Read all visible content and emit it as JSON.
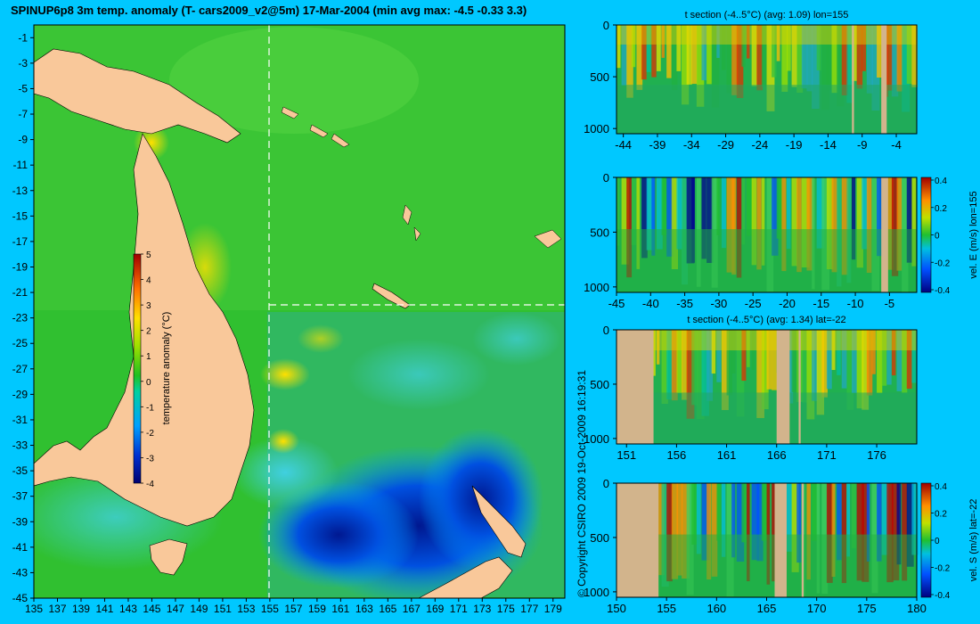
{
  "title": "SPINUP6p8 3m temp. anomaly (T- cars2009_v2@5m) 17-Mar-2004 (min avg max: -4.5 -0.33 3.3)",
  "copyright": "© Copyright CSIRO 2009  19-Oct-2009 16:19:31",
  "colors": {
    "background": "#00c8ff",
    "land": "#f9c89a",
    "section_land": "#d2b48c"
  },
  "map": {
    "x_ticks": [
      "135",
      "137",
      "139",
      "141",
      "143",
      "145",
      "147",
      "149",
      "151",
      "153",
      "155",
      "157",
      "159",
      "161",
      "163",
      "165",
      "167",
      "169",
      "171",
      "173",
      "175",
      "177",
      "179"
    ],
    "y_ticks": [
      "-1",
      "-3",
      "-5",
      "-7",
      "-9",
      "-11",
      "-13",
      "-15",
      "-17",
      "-19",
      "-21",
      "-23",
      "-25",
      "-27",
      "-29",
      "-31",
      "-33",
      "-35",
      "-37",
      "-39",
      "-41",
      "-43",
      "-45"
    ],
    "xlim": [
      135,
      180
    ],
    "ylim": [
      -45,
      0
    ],
    "section_lon": 155,
    "section_lat": -22,
    "colorbar": {
      "label": "temperature anomaly (°C)",
      "ticks": [
        "5",
        "4",
        "3",
        "2",
        "1",
        "0",
        "-1",
        "-2",
        "-3",
        "-4"
      ],
      "range": [
        -4,
        5
      ]
    }
  },
  "chart_data": [
    {
      "type": "heatmap",
      "title": "t section (-4..5°C) (avg: 1.09) lon=155",
      "x_ticks": [
        "-44",
        "-39",
        "-34",
        "-29",
        "-24",
        "-19",
        "-14",
        "-9",
        "-4"
      ],
      "y_ticks": [
        "0",
        "500",
        "1000"
      ],
      "xlim": [
        -45,
        -1
      ],
      "ylim": [
        1050,
        0
      ]
    },
    {
      "type": "heatmap",
      "title": "",
      "x_ticks": [
        "-45",
        "-40",
        "-35",
        "-30",
        "-25",
        "-20",
        "-15",
        "-10",
        "-5"
      ],
      "y_ticks": [
        "0",
        "500",
        "1000"
      ],
      "xlim": [
        -45,
        -1
      ],
      "ylim": [
        1050,
        0
      ],
      "colorbar": {
        "label": "vel. E (m/s) lon=155",
        "ticks": [
          "0.4",
          "0.2",
          "0",
          "-0.2",
          "-0.4"
        ],
        "range": [
          -0.4,
          0.4
        ]
      }
    },
    {
      "type": "heatmap",
      "title": "t section (-4..5°C) (avg: 1.34) lat=-22",
      "x_ticks": [
        "151",
        "156",
        "161",
        "166",
        "171",
        "176"
      ],
      "y_ticks": [
        "0",
        "500",
        "1000"
      ],
      "xlim": [
        150,
        180
      ],
      "ylim": [
        1050,
        0
      ]
    },
    {
      "type": "heatmap",
      "title": "",
      "x_ticks": [
        "150",
        "155",
        "160",
        "165",
        "170",
        "175",
        "180"
      ],
      "y_ticks": [
        "0",
        "500",
        "1000"
      ],
      "xlim": [
        150,
        180
      ],
      "ylim": [
        1050,
        0
      ],
      "colorbar": {
        "label": "vel. S (m/s) lat=-22",
        "ticks": [
          "0.4",
          "0.2",
          "0",
          "-0.2",
          "-0.4"
        ],
        "range": [
          -0.4,
          0.4
        ]
      }
    }
  ]
}
